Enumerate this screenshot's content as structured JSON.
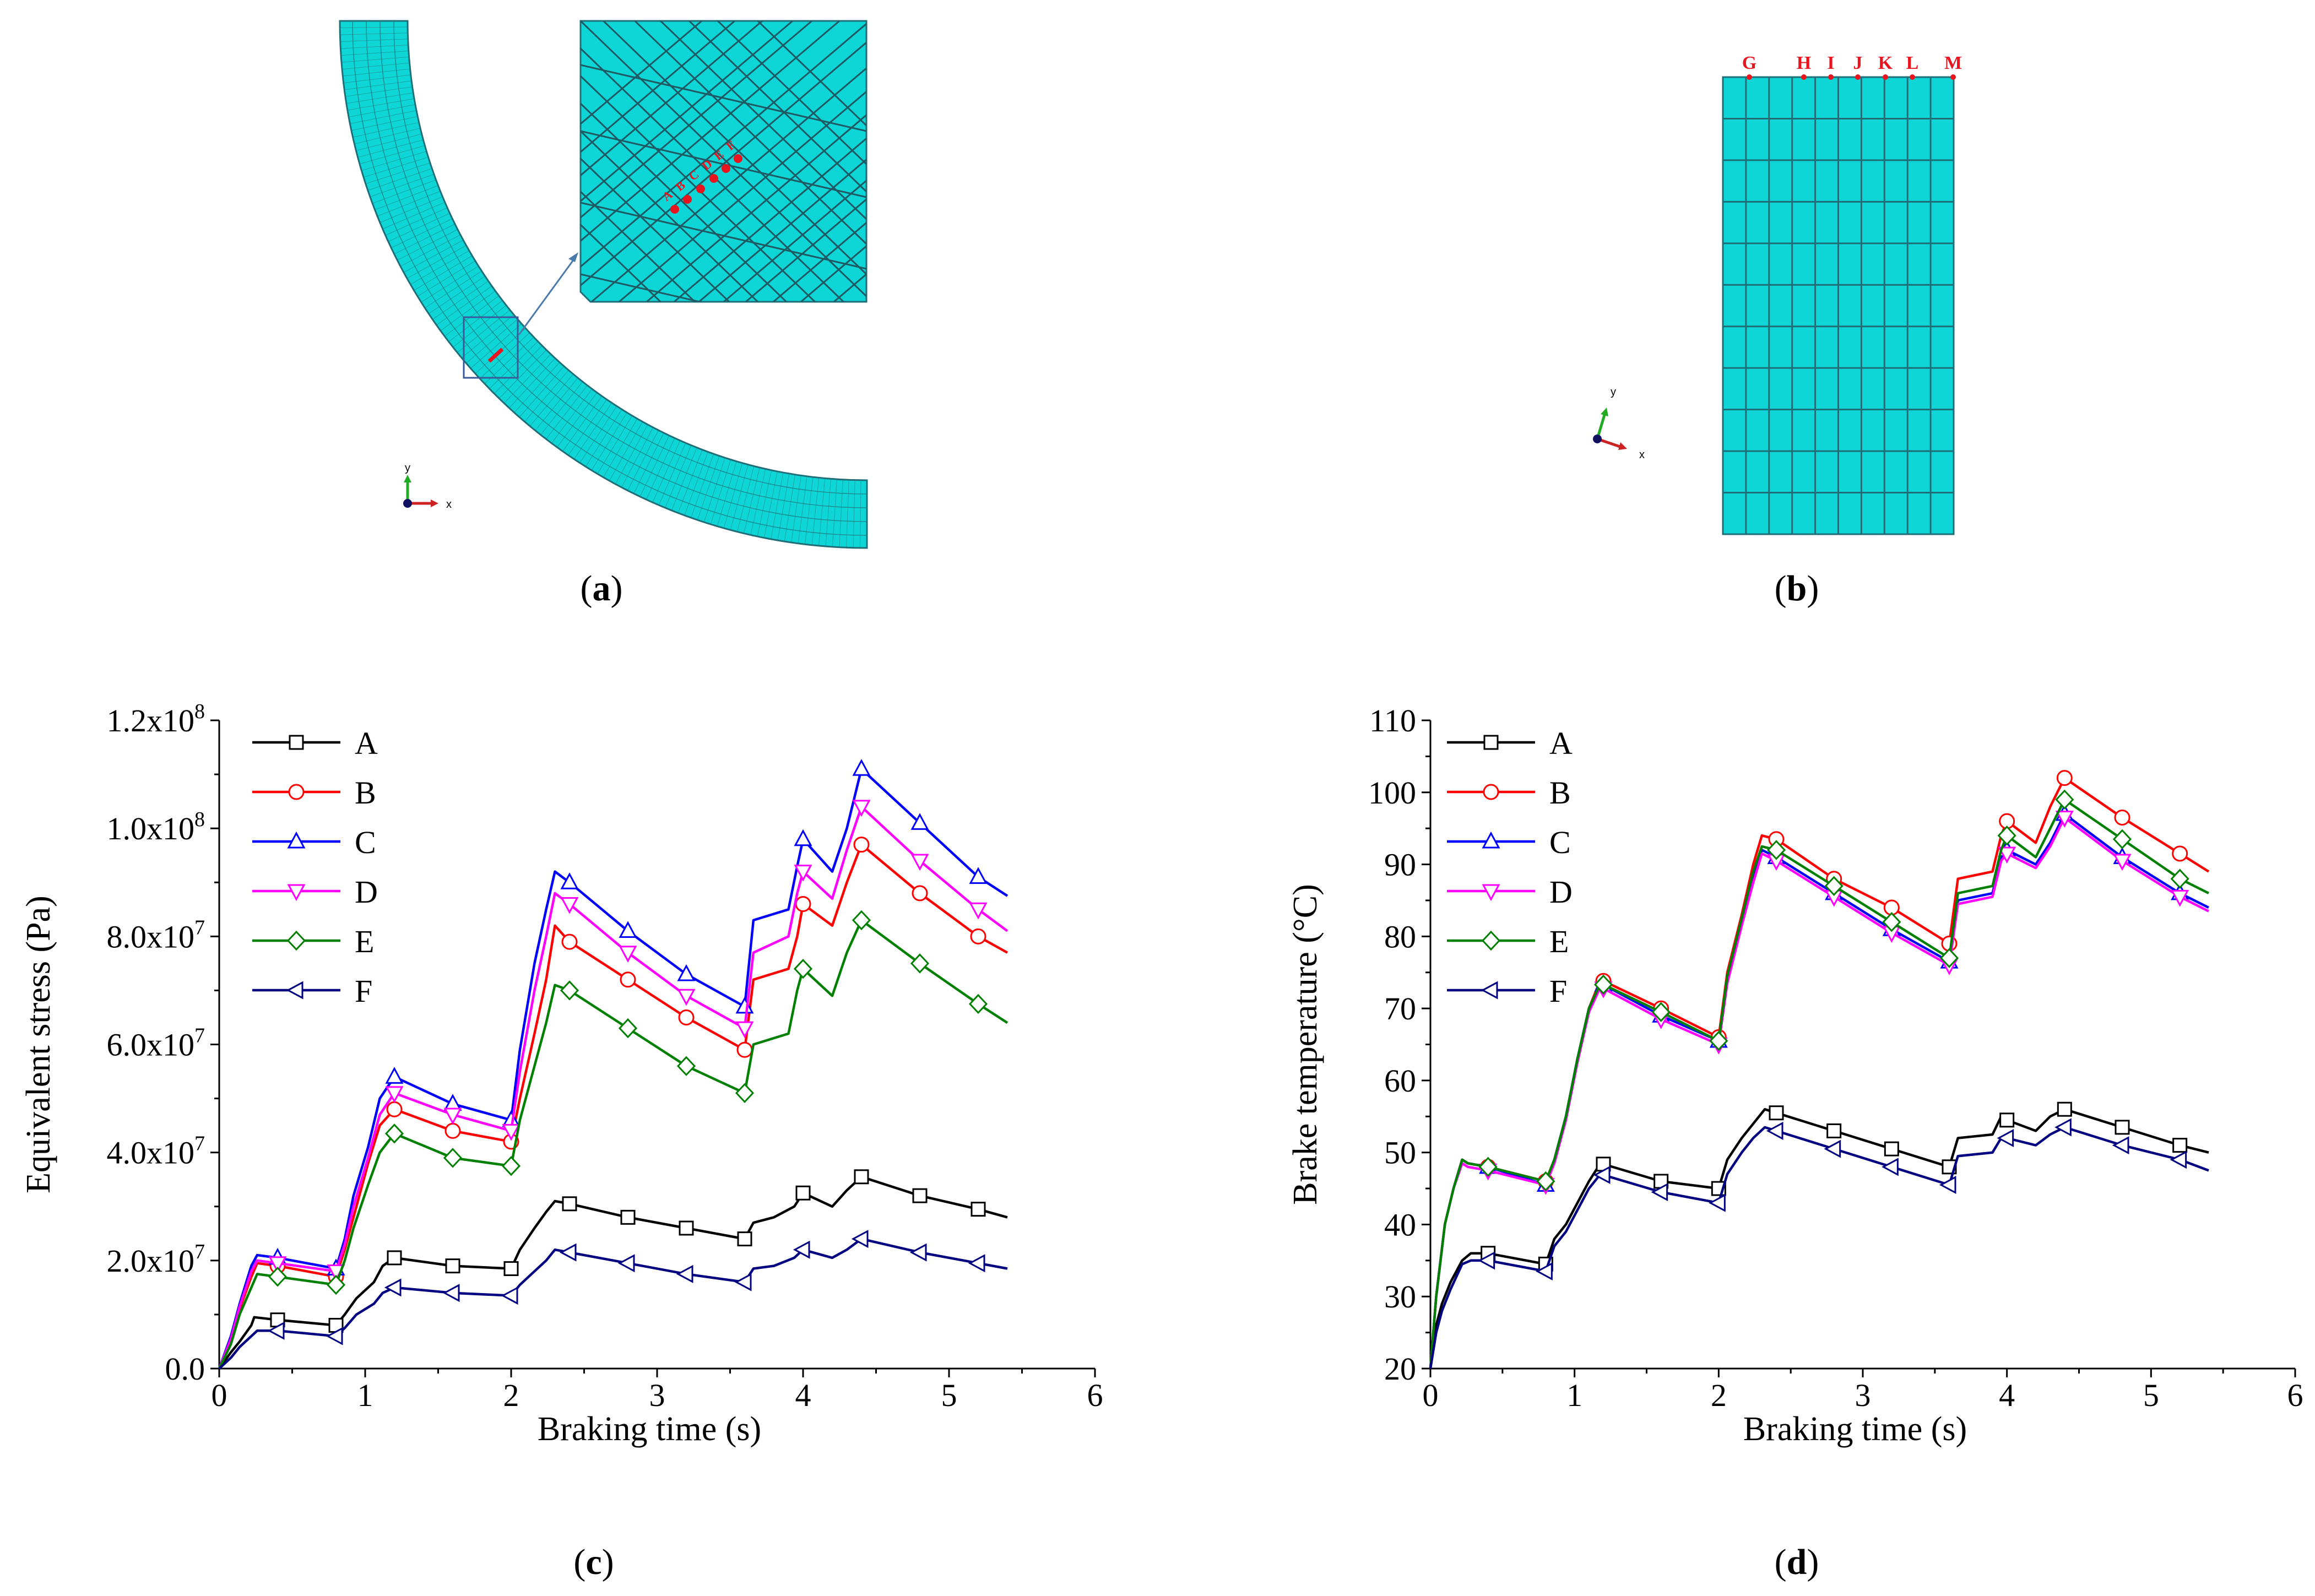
{
  "panels": {
    "a": {
      "caption": "(a)",
      "caption_letter": "a",
      "axes": {
        "x": "x",
        "y": "y"
      },
      "node_labels": [
        "A",
        "B",
        "C",
        "D",
        "E",
        "F"
      ]
    },
    "b": {
      "caption": "(b)",
      "caption_letter": "b",
      "axes": {
        "x": "x",
        "y": "y"
      },
      "node_labels": [
        "G",
        "H",
        "I",
        "J",
        "K",
        "L",
        "M"
      ]
    },
    "c": {
      "caption": "(c)",
      "caption_letter": "c"
    },
    "d": {
      "caption": "(d)",
      "caption_letter": "d"
    }
  },
  "colors": {
    "mesh": "#0fd6d6",
    "mesh_line": "#1e6e78",
    "node": "#e8141e",
    "A": "#000000",
    "B": "#ff0000",
    "C": "#0000ff",
    "D": "#ff00ff",
    "E": "#008000",
    "F": "#000080"
  },
  "chart_data": [
    {
      "id": "c",
      "type": "line",
      "title": "",
      "xlabel": "Braking time (s)",
      "ylabel": "Equivalent stress (Pa)",
      "xlim": [
        0,
        6
      ],
      "ylim": [
        0,
        120000000
      ],
      "xticks": [
        0,
        1,
        2,
        3,
        4,
        5,
        6
      ],
      "xtick_labels": [
        "0",
        "1",
        "2",
        "3",
        "4",
        "5",
        "6"
      ],
      "yticks": [
        0,
        20000000,
        40000000,
        60000000,
        80000000,
        100000000,
        120000000
      ],
      "ytick_labels": [
        "0.0",
        "2.0x10^7",
        "4.0x10^7",
        "6.0x10^7",
        "8.0x10^7",
        "1.0x10^8",
        "1.2x10^8"
      ],
      "legend_position": "top-left",
      "series": [
        {
          "name": "A",
          "marker": "square",
          "color": "#000000",
          "x": [
            0,
            0.08,
            0.14,
            0.22,
            0.24,
            0.4,
            0.8,
            0.86,
            0.94,
            1.06,
            1.12,
            1.2,
            1.6,
            2.0,
            2.06,
            2.16,
            2.24,
            2.3,
            2.4,
            2.8,
            3.2,
            3.6,
            3.66,
            3.8,
            3.94,
            4.0,
            4.2,
            4.3,
            4.4,
            4.8,
            5.2,
            5.4
          ],
          "y": [
            0,
            3000000.0,
            5000000.0,
            8000000.0,
            9500000.0,
            9000000.0,
            8000000.0,
            10000000.0,
            13000000.0,
            16000000.0,
            19000000.0,
            20500000.0,
            19000000.0,
            18500000.0,
            22000000.0,
            26000000.0,
            29000000.0,
            31000000.0,
            30500000.0,
            28000000.0,
            26000000.0,
            24000000.0,
            27000000.0,
            28000000.0,
            30000000.0,
            32500000.0,
            30000000.0,
            33000000.0,
            35500000.0,
            32000000.0,
            29500000.0,
            28000000.0
          ]
        },
        {
          "name": "B",
          "marker": "circle",
          "color": "#ff0000",
          "x": [
            0,
            0.08,
            0.14,
            0.22,
            0.26,
            0.4,
            0.8,
            0.86,
            0.92,
            1.02,
            1.1,
            1.2,
            1.6,
            2.0,
            2.06,
            2.16,
            2.24,
            2.3,
            2.4,
            2.8,
            3.2,
            3.6,
            3.66,
            3.9,
            3.96,
            4.0,
            4.2,
            4.3,
            4.4,
            4.8,
            5.2,
            5.4
          ],
          "y": [
            0,
            5000000.0,
            11000000.0,
            17000000.0,
            19500000.0,
            19000000.0,
            17000000.0,
            22000000.0,
            28000000.0,
            38000000.0,
            45000000.0,
            48000000.0,
            44000000.0,
            42000000.0,
            50000000.0,
            62000000.0,
            72000000.0,
            82000000.0,
            79000000.0,
            72000000.0,
            65000000.0,
            59000000.0,
            72000000.0,
            74000000.0,
            80000000.0,
            86000000.0,
            82000000.0,
            90000000.0,
            97000000.0,
            88000000.0,
            80000000.0,
            77000000.0
          ]
        },
        {
          "name": "C",
          "marker": "triangle-up",
          "color": "#0000ff",
          "x": [
            0,
            0.08,
            0.14,
            0.22,
            0.26,
            0.4,
            0.8,
            0.86,
            0.92,
            1.02,
            1.1,
            1.2,
            1.6,
            2.0,
            2.06,
            2.16,
            2.24,
            2.3,
            2.4,
            2.8,
            3.2,
            3.6,
            3.66,
            3.9,
            3.96,
            4.0,
            4.2,
            4.3,
            4.4,
            4.8,
            5.2,
            5.4
          ],
          "y": [
            0,
            6000000.0,
            12000000.0,
            19000000.0,
            21000000.0,
            20500000.0,
            18500000.0,
            24000000.0,
            32000000.0,
            41000000.0,
            50000000.0,
            54000000.0,
            49000000.0,
            46000000.0,
            59000000.0,
            75000000.0,
            85000000.0,
            92000000.0,
            90000000.0,
            81000000.0,
            73000000.0,
            67000000.0,
            83000000.0,
            85000000.0,
            93000000.0,
            98000000.0,
            92000000.0,
            100000000.0,
            111000000.0,
            101000000.0,
            91000000.0,
            87500000.0
          ]
        },
        {
          "name": "D",
          "marker": "triangle-down",
          "color": "#ff00ff",
          "x": [
            0,
            0.08,
            0.14,
            0.22,
            0.26,
            0.4,
            0.8,
            0.86,
            0.92,
            1.02,
            1.1,
            1.2,
            1.6,
            2.0,
            2.06,
            2.16,
            2.24,
            2.3,
            2.4,
            2.8,
            3.2,
            3.6,
            3.66,
            3.9,
            3.96,
            4.0,
            4.2,
            4.3,
            4.4,
            4.8,
            5.2,
            5.4
          ],
          "y": [
            0,
            5500000.0,
            11500000.0,
            18000000.0,
            20000000.0,
            19500000.0,
            18000000.0,
            23000000.0,
            30000000.0,
            39000000.0,
            47000000.0,
            51000000.0,
            47000000.0,
            44000000.0,
            55000000.0,
            70000000.0,
            80000000.0,
            88000000.0,
            86000000.0,
            77000000.0,
            69000000.0,
            63000000.0,
            77000000.0,
            80000000.0,
            88000000.0,
            92000000.0,
            87000000.0,
            96000000.0,
            104000000.0,
            94000000.0,
            85000000.0,
            81000000.0
          ]
        },
        {
          "name": "E",
          "marker": "diamond",
          "color": "#008000",
          "x": [
            0,
            0.08,
            0.14,
            0.22,
            0.26,
            0.4,
            0.8,
            0.86,
            0.92,
            1.02,
            1.1,
            1.2,
            1.6,
            2.0,
            2.06,
            2.16,
            2.24,
            2.3,
            2.4,
            2.8,
            3.2,
            3.6,
            3.66,
            3.9,
            3.96,
            4.0,
            4.2,
            4.3,
            4.4,
            4.8,
            5.2,
            5.4
          ],
          "y": [
            0,
            4500000.0,
            10000000.0,
            15000000.0,
            17500000.0,
            17000000.0,
            15500000.0,
            20000000.0,
            26000000.0,
            34000000.0,
            40000000.0,
            43500000.0,
            39000000.0,
            37500000.0,
            46000000.0,
            56000000.0,
            64000000.0,
            71000000.0,
            70000000.0,
            63000000.0,
            56000000.0,
            51000000.0,
            60000000.0,
            62000000.0,
            70000000.0,
            74000000.0,
            69000000.0,
            77000000.0,
            83000000.0,
            75000000.0,
            67500000.0,
            64000000.0
          ]
        },
        {
          "name": "F",
          "marker": "triangle-left",
          "color": "#000080",
          "x": [
            0,
            0.08,
            0.14,
            0.22,
            0.26,
            0.4,
            0.8,
            0.86,
            0.94,
            1.06,
            1.12,
            1.2,
            1.6,
            2.0,
            2.06,
            2.16,
            2.24,
            2.3,
            2.4,
            2.8,
            3.2,
            3.6,
            3.66,
            3.8,
            3.94,
            4.0,
            4.2,
            4.3,
            4.4,
            4.8,
            5.2,
            5.4
          ],
          "y": [
            0,
            2000000.0,
            4000000.0,
            6000000.0,
            7000000.0,
            7000000.0,
            6000000.0,
            7500000.0,
            10000000.0,
            12000000.0,
            14000000.0,
            15000000.0,
            14000000.0,
            13500000.0,
            15500000.0,
            18000000.0,
            20000000.0,
            22000000.0,
            21500000.0,
            19500000.0,
            17500000.0,
            16000000.0,
            18500000.0,
            19000000.0,
            20500000.0,
            22000000.0,
            20500000.0,
            22000000.0,
            24000000.0,
            21500000.0,
            19500000.0,
            18500000.0
          ]
        }
      ]
    },
    {
      "id": "d",
      "type": "line",
      "title": "",
      "xlabel": "Braking time (s)",
      "ylabel": "Brake temperature (°C)",
      "xlim": [
        0,
        6
      ],
      "ylim": [
        20,
        110
      ],
      "xticks": [
        0,
        1,
        2,
        3,
        4,
        5,
        6
      ],
      "xtick_labels": [
        "0",
        "1",
        "2",
        "3",
        "4",
        "5",
        "6"
      ],
      "yticks": [
        20,
        30,
        40,
        50,
        60,
        70,
        80,
        90,
        100,
        110
      ],
      "ytick_labels": [
        "20",
        "30",
        "40",
        "50",
        "60",
        "70",
        "80",
        "90",
        "100",
        "110"
      ],
      "legend_position": "top-left",
      "series": [
        {
          "name": "A",
          "marker": "square",
          "color": "#000000",
          "x": [
            0,
            0.04,
            0.08,
            0.14,
            0.22,
            0.28,
            0.4,
            0.8,
            0.86,
            0.94,
            1.02,
            1.1,
            1.18,
            1.6,
            2.0,
            2.06,
            2.16,
            2.24,
            2.32,
            2.4,
            2.8,
            3.2,
            3.6,
            3.66,
            3.9,
            3.96,
            4.0,
            4.2,
            4.3,
            4.4,
            4.8,
            5.2,
            5.4
          ],
          "y": [
            20,
            26,
            29,
            32,
            35,
            36,
            36,
            34.5,
            38,
            40,
            43,
            46,
            48.5,
            46,
            45,
            49,
            52,
            54,
            56,
            55.5,
            53,
            50.5,
            48,
            52,
            52.5,
            55,
            54.5,
            53,
            55,
            56,
            53.5,
            51,
            50
          ]
        },
        {
          "name": "B",
          "marker": "circle",
          "color": "#ff0000",
          "x": [
            0,
            0.04,
            0.1,
            0.16,
            0.22,
            0.26,
            0.4,
            0.8,
            0.86,
            0.94,
            1.02,
            1.1,
            1.18,
            1.6,
            2.0,
            2.06,
            2.16,
            2.24,
            2.3,
            2.4,
            2.8,
            3.2,
            3.6,
            3.66,
            3.9,
            3.96,
            4.0,
            4.2,
            4.3,
            4.4,
            4.8,
            5.2,
            5.4
          ],
          "y": [
            20,
            30,
            40,
            45,
            49,
            48.5,
            48,
            46,
            49,
            55,
            63,
            70,
            74,
            70,
            66,
            75,
            83,
            90,
            94,
            93.5,
            88,
            84,
            79,
            88,
            89,
            94,
            96,
            93,
            98,
            102,
            96.5,
            91.5,
            89
          ]
        },
        {
          "name": "C",
          "marker": "triangle-up",
          "color": "#0000ff",
          "x": [
            0,
            0.04,
            0.1,
            0.16,
            0.22,
            0.26,
            0.4,
            0.8,
            0.86,
            0.94,
            1.02,
            1.1,
            1.18,
            1.6,
            2.0,
            2.06,
            2.16,
            2.24,
            2.3,
            2.4,
            2.8,
            3.2,
            3.6,
            3.66,
            3.9,
            3.96,
            4.0,
            4.2,
            4.3,
            4.4,
            4.8,
            5.2,
            5.4
          ],
          "y": [
            20,
            30,
            40,
            45,
            49,
            48.5,
            48,
            45.5,
            49,
            55,
            63,
            70,
            73.5,
            69,
            65.5,
            74,
            82,
            88,
            92,
            91,
            86,
            81,
            76.5,
            85,
            86,
            91,
            92,
            90,
            93,
            97,
            91,
            86,
            84
          ]
        },
        {
          "name": "D",
          "marker": "triangle-down",
          "color": "#ff00ff",
          "x": [
            0,
            0.04,
            0.1,
            0.16,
            0.22,
            0.26,
            0.4,
            0.8,
            0.86,
            0.94,
            1.02,
            1.1,
            1.18,
            1.6,
            2.0,
            2.06,
            2.16,
            2.24,
            2.3,
            2.4,
            2.8,
            3.2,
            3.6,
            3.66,
            3.9,
            3.96,
            4.0,
            4.2,
            4.3,
            4.4,
            4.8,
            5.2,
            5.4
          ],
          "y": [
            20,
            30,
            40,
            45,
            48.5,
            48,
            47.5,
            45.5,
            48.5,
            54.5,
            62.5,
            69.5,
            73,
            68.5,
            65,
            73.5,
            81.5,
            87.5,
            91.5,
            90.5,
            85.5,
            80.5,
            76,
            84.5,
            85.5,
            90.5,
            91.5,
            89.5,
            92.5,
            96.5,
            90.5,
            85.5,
            83.5
          ]
        },
        {
          "name": "E",
          "marker": "diamond",
          "color": "#008000",
          "x": [
            0,
            0.04,
            0.1,
            0.16,
            0.22,
            0.26,
            0.4,
            0.8,
            0.86,
            0.94,
            1.02,
            1.1,
            1.18,
            1.6,
            2.0,
            2.06,
            2.16,
            2.24,
            2.3,
            2.4,
            2.8,
            3.2,
            3.6,
            3.66,
            3.9,
            3.96,
            4.0,
            4.2,
            4.3,
            4.4,
            4.8,
            5.2,
            5.4
          ],
          "y": [
            20,
            30,
            40,
            45,
            49,
            48.5,
            48,
            46,
            49,
            55,
            63,
            70,
            73.5,
            69.5,
            65.5,
            74.5,
            82.5,
            89,
            92.5,
            92,
            87,
            82,
            77,
            86,
            87,
            92,
            94,
            91,
            95,
            99,
            93.5,
            88,
            86
          ]
        },
        {
          "name": "F",
          "marker": "triangle-left",
          "color": "#000080",
          "x": [
            0,
            0.04,
            0.08,
            0.14,
            0.22,
            0.28,
            0.4,
            0.8,
            0.86,
            0.94,
            1.02,
            1.1,
            1.18,
            1.6,
            2.0,
            2.06,
            2.16,
            2.24,
            2.32,
            2.4,
            2.8,
            3.2,
            3.6,
            3.66,
            3.9,
            3.96,
            4.0,
            4.2,
            4.3,
            4.4,
            4.8,
            5.2,
            5.4
          ],
          "y": [
            20,
            25,
            28,
            31,
            34.5,
            35,
            35,
            33.5,
            37,
            39,
            42,
            45,
            47,
            44.5,
            43,
            47,
            50,
            52,
            53.5,
            53,
            50.5,
            48,
            45.5,
            49.5,
            50,
            52,
            52,
            51,
            52.5,
            53.5,
            51,
            49,
            47.5
          ]
        }
      ]
    }
  ]
}
